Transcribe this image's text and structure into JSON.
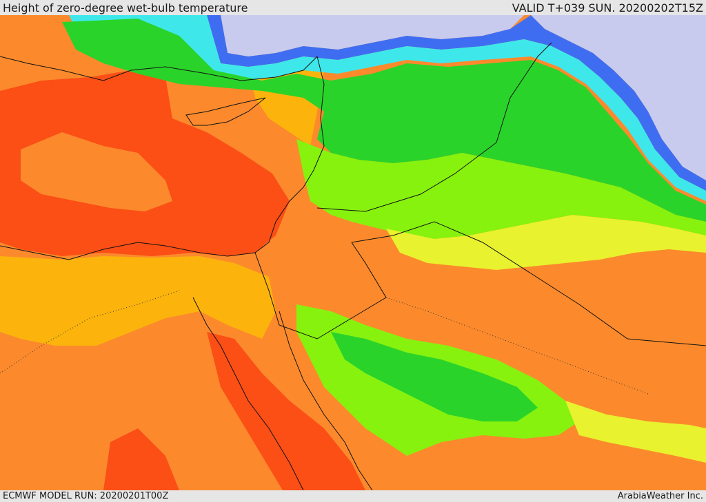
{
  "header": {
    "title": "Height of zero-degree wet-bulb temperature",
    "valid": "VALID T+039 SUN. 20200202T15Z"
  },
  "footer": {
    "model_run": "ECMWF MODEL RUN: 20200201T00Z",
    "credit": "ArabiaWeather Inc."
  },
  "palette": {
    "lowest": "#c8cbee",
    "blue": "#3f6df2",
    "cyan": "#3ee8ea",
    "green": "#2ad32a",
    "lime": "#86f20e",
    "yellow": "#e8f22e",
    "gold": "#fcb40c",
    "orange": "#fc8a2c",
    "red": "#fb4f16",
    "boundary": "#111111"
  }
}
